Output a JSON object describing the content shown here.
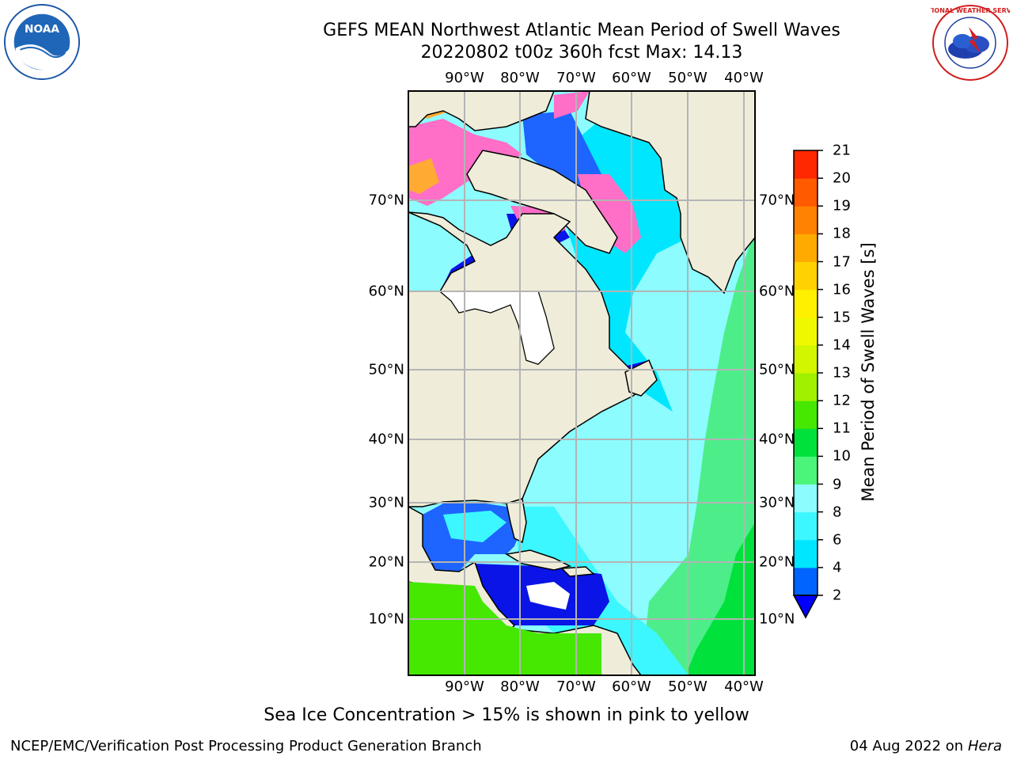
{
  "title": {
    "line1": "GEFS MEAN Northwest Atlantic Mean Period of Swell Waves",
    "line2": "20220802 t00z 360h fcst   Max: 14.13"
  },
  "map": {
    "lon_labels": [
      "90°W",
      "80°W",
      "70°W",
      "60°W",
      "50°W",
      "40°W"
    ],
    "lat_labels": [
      "70°N",
      "60°N",
      "50°N",
      "40°N",
      "30°N",
      "20°N",
      "10°N"
    ],
    "colors": {
      "land": "#efedd9",
      "ice_pink": "#ff6ec7",
      "ice_orange": "#ffaa33",
      "p2_4": "#1e64ff",
      "p4_6": "#00e6ff",
      "p6_8": "#3cf7ff",
      "p8_9": "#8cfcff",
      "p9_10": "#4dee8a",
      "p10_11": "#00e13c",
      "p11_12": "#46e700",
      "under": "#0a14e6",
      "grid": "#b4b4b4"
    }
  },
  "colorbar": {
    "title": "Mean Period of Swell Waves [s]",
    "ticks": [
      "2",
      "4",
      "6",
      "8",
      "9",
      "10",
      "11",
      "12",
      "13",
      "14",
      "15",
      "16",
      "17",
      "18",
      "19",
      "20",
      "21"
    ],
    "colors": [
      "#0064ff",
      "#00e6ff",
      "#3cf7ff",
      "#8cfcff",
      "#4bf57a",
      "#00e13c",
      "#46e700",
      "#a0f000",
      "#d2f500",
      "#f0f800",
      "#fff000",
      "#ffd200",
      "#ffaa00",
      "#ff8200",
      "#ff5a00",
      "#ff2800"
    ],
    "under_color": "#0000ff"
  },
  "note": "Sea Ice Concentration > 15% is shown in pink to yellow",
  "footer": {
    "left": "NCEP/EMC/Verification Post Processing Product Generation Branch",
    "right_date": "04 Aug 2022 on",
    "right_host": "Hera"
  },
  "logos": {
    "left": "noaa-logo",
    "left_text": "NOAA",
    "right": "nws-logo",
    "right_text": "NATIONAL WEATHER SERVICE"
  }
}
